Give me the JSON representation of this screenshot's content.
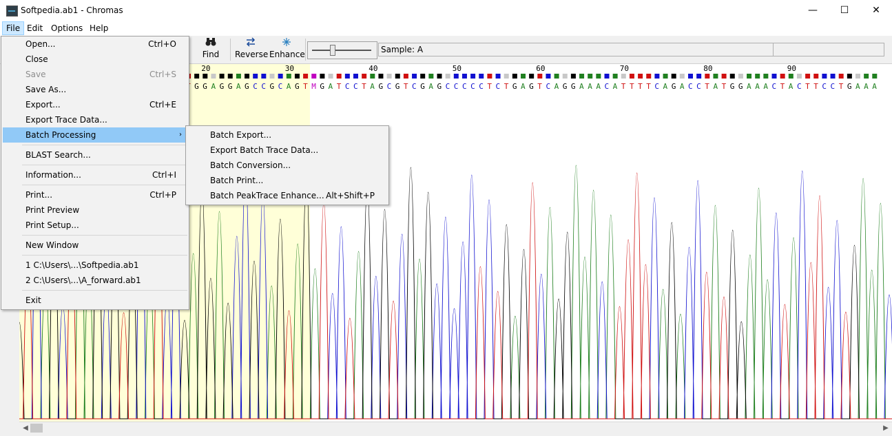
{
  "window": {
    "title": "Softpedia.ab1 - Chromas",
    "minimize": "—",
    "maximize": "☐",
    "close": "✕"
  },
  "menubar": {
    "items": [
      "File",
      "Edit",
      "Options",
      "Help"
    ]
  },
  "toolbar": {
    "find_label": "Find",
    "reverse_label": "Reverse",
    "enhance_label": "Enhance",
    "sample_text": "Sample: A"
  },
  "file_menu": {
    "items": [
      {
        "label": "Open...",
        "shortcut": "Ctrl+O",
        "disabled": false
      },
      {
        "label": "Close",
        "shortcut": "",
        "disabled": false
      },
      {
        "label": "Save",
        "shortcut": "Ctrl+S",
        "disabled": true
      },
      {
        "label": "Save As...",
        "shortcut": "",
        "disabled": false
      },
      {
        "label": "Export...",
        "shortcut": "Ctrl+E",
        "disabled": false
      },
      {
        "label": "Export Trace Data...",
        "shortcut": "",
        "disabled": false
      },
      {
        "label": "Batch Processing",
        "shortcut": "",
        "disabled": false,
        "submenu": true,
        "highlighted": true
      },
      {
        "label": "BLAST Search...",
        "shortcut": "",
        "disabled": false
      },
      {
        "label": "Information...",
        "shortcut": "Ctrl+I",
        "disabled": false
      },
      {
        "label": "Print...",
        "shortcut": "Ctrl+P",
        "disabled": false
      },
      {
        "label": "Print Preview",
        "shortcut": "",
        "disabled": false
      },
      {
        "label": "Print Setup...",
        "shortcut": "",
        "disabled": false
      },
      {
        "label": "New Window",
        "shortcut": "",
        "disabled": false
      },
      {
        "label": "1 C:\\Users\\...\\Softpedia.ab1",
        "shortcut": "",
        "disabled": false
      },
      {
        "label": "2 C:\\Users\\...\\A_forward.ab1",
        "shortcut": "",
        "disabled": false
      },
      {
        "label": "Exit",
        "shortcut": "",
        "disabled": false
      }
    ]
  },
  "batch_submenu": {
    "items": [
      {
        "label": "Batch Export...",
        "shortcut": ""
      },
      {
        "label": "Export Batch Trace Data...",
        "shortcut": ""
      },
      {
        "label": "Batch Conversion...",
        "shortcut": ""
      },
      {
        "label": "Batch Print...",
        "shortcut": ""
      },
      {
        "label": "Batch PeakTrace Enhance...",
        "shortcut": "Alt+Shift+P"
      }
    ]
  },
  "sequence": {
    "position_ticks": [
      "20",
      "30",
      "40",
      "50",
      "60",
      "70",
      "80",
      "90"
    ],
    "bases": "TGGAGGAGCCGCAGTMGATCCTAGCGTCGAGCCCCCTCTGAGTCAGGAAACATTTTCAGACCTATGGAAACTACTTCCTGAAA",
    "base_colors": {
      "A": "#208020",
      "C": "#1010d0",
      "G": "#000000",
      "T": "#d01010",
      "M": "#c000c0"
    }
  }
}
